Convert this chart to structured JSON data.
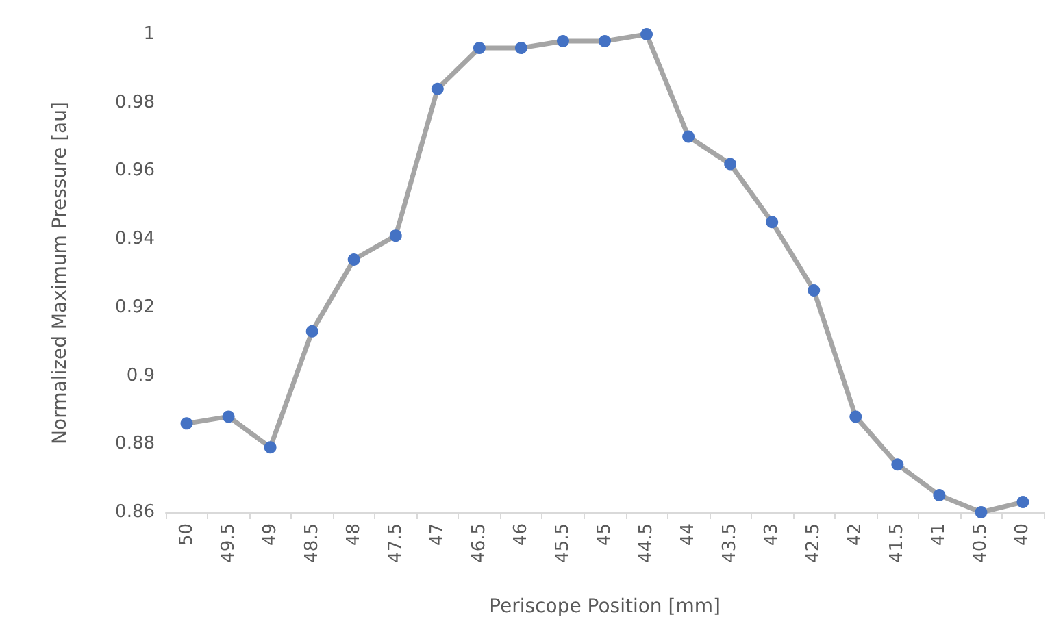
{
  "chart_data": {
    "type": "line",
    "xlabel": "Periscope Position [mm]",
    "ylabel": "Normalized Maximum Pressure [au]",
    "categories": [
      "50",
      "49.5",
      "49",
      "48.5",
      "48",
      "47.5",
      "47",
      "46.5",
      "46",
      "45.5",
      "45",
      "44.5",
      "44",
      "43.5",
      "43",
      "42.5",
      "42",
      "41.5",
      "41",
      "40.5",
      "40"
    ],
    "series": [
      {
        "color": "#4472c4",
        "values": [
          0.886,
          0.888,
          0.879,
          0.913,
          0.934,
          0.941,
          0.984,
          0.996,
          0.996,
          0.998,
          0.998,
          1.0,
          0.97,
          0.962,
          0.945,
          0.925,
          0.888,
          0.874,
          0.865,
          0.86,
          0.863
        ]
      }
    ],
    "ylim": [
      0.86,
      1
    ],
    "yticks": [
      0.86,
      0.88,
      0.9,
      0.92,
      0.94,
      0.96,
      0.98,
      1
    ],
    "grid": false,
    "marker": "circle",
    "line_style": "solid"
  }
}
